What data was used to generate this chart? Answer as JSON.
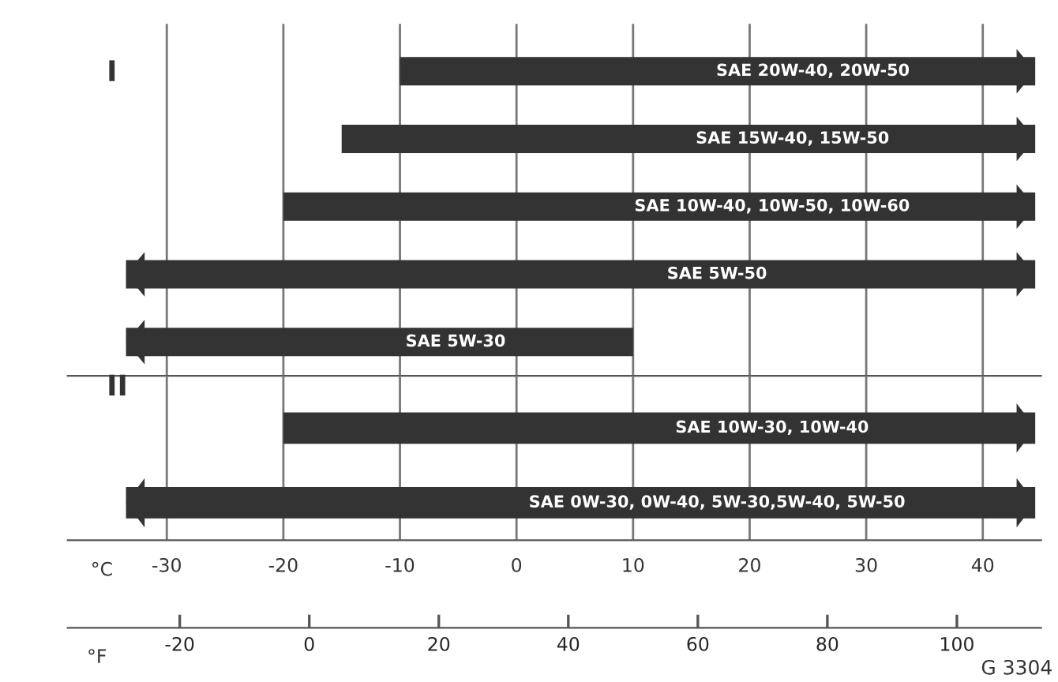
{
  "chart_data": [
    {
      "type": "bar",
      "title": "I",
      "orientation": "horizontal",
      "categories": [
        "SAE 20W-40, 20W-50",
        "SAE 15W-40, 15W-50",
        "SAE 10W-40, 10W-50, 10W-60",
        "SAE 5W-50",
        "SAE 5W-30"
      ],
      "base": [
        -10,
        -15,
        -20,
        -33.5,
        -33.5
      ],
      "values": [
        54.5,
        59.5,
        64.5,
        78,
        43.5
      ],
      "color": "#333333",
      "xlim": [
        -38.5,
        45
      ],
      "xticks": [
        -30,
        -20,
        -10,
        0,
        10,
        20,
        30,
        40
      ],
      "grid": "x",
      "tick_labels": false
    },
    {
      "type": "bar",
      "title": "II",
      "orientation": "horizontal",
      "categories": [
        "SAE 10W-30, 10W-40",
        "SAE 0W-30, 0W-40, 5W-30,5W-40, 5W-50"
      ],
      "base": [
        -20,
        -33.5
      ],
      "values": [
        64.5,
        78
      ],
      "color": "#333333",
      "xlim": [
        -38.5,
        45
      ],
      "xticks": [
        -30,
        -20,
        -10,
        0,
        10,
        20,
        30,
        40
      ],
      "grid": "x",
      "xlabel": "°C",
      "x2label": "°F",
      "x2lim": [
        -37.3,
        113
      ],
      "x2ticks": [
        -20,
        0,
        20,
        40,
        60,
        80,
        100
      ],
      "annotations": [
        "G 3304"
      ]
    }
  ]
}
